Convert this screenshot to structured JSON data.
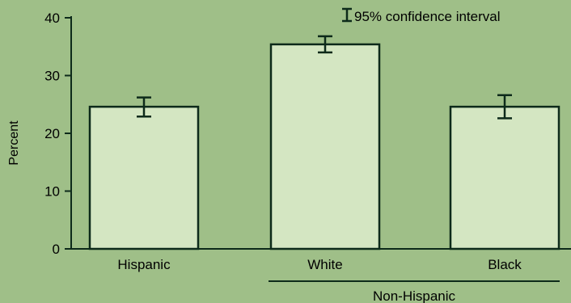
{
  "chart_data": {
    "type": "bar",
    "title": "",
    "xlabel": "",
    "ylabel": "Percent",
    "ylim": [
      0,
      40
    ],
    "yticks": [
      0,
      10,
      20,
      30,
      40
    ],
    "categories": [
      "Hispanic",
      "White",
      "Black"
    ],
    "values": [
      24.6,
      35.4,
      24.6
    ],
    "ci_lower": [
      22.9,
      34.0,
      22.6
    ],
    "ci_upper": [
      26.2,
      36.8,
      26.6
    ],
    "group_label": {
      "text": "Non-Hispanic",
      "categories": [
        "White",
        "Black"
      ]
    },
    "legend": {
      "label": "95% confidence interval",
      "placement": "top-right"
    },
    "colors": {
      "background": "#9fbf88",
      "bar_fill": "#d4e6c2",
      "bar_stroke": "#0d2a1a",
      "axis": "#0d2a1a"
    }
  }
}
